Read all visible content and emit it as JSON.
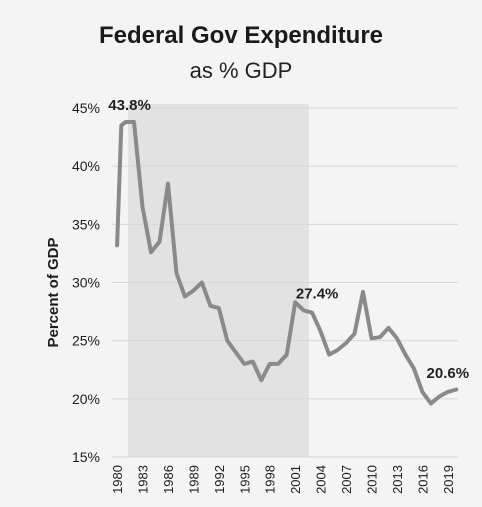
{
  "chart_data": {
    "type": "line",
    "title": "Federal Gov Expenditure",
    "subtitle": "as % GDP",
    "ylabel": "Percent of GDP",
    "xlabel": "",
    "ylim": [
      15,
      45
    ],
    "xlim": [
      1979.4,
      2020.2
    ],
    "y_ticks": [
      "15%",
      "20%",
      "25%",
      "30%",
      "35%",
      "40%",
      "45%"
    ],
    "y_tick_values": [
      15,
      20,
      25,
      30,
      35,
      40,
      45
    ],
    "x_ticks": [
      "1980",
      "1983",
      "1986",
      "1989",
      "1992",
      "1995",
      "1998",
      "2001",
      "2004",
      "2007",
      "2010",
      "2013",
      "2016",
      "2019"
    ],
    "x_tick_values": [
      1980,
      1983,
      1986,
      1989,
      1992,
      1995,
      1998,
      2001,
      2004,
      2007,
      2010,
      2013,
      2016,
      2019
    ],
    "grid": true,
    "series": [
      {
        "x": [
          1980,
          1980.5,
          1981,
          1982,
          1983,
          1984,
          1985,
          1986,
          1987,
          1988,
          1989,
          1990,
          1991,
          1992,
          1993,
          1994,
          1995,
          1996,
          1997,
          1998,
          1999,
          2000,
          2001,
          2002,
          2003,
          2004,
          2005,
          2006,
          2007,
          2008,
          2009,
          2010,
          2011,
          2012,
          2013,
          2014,
          2015,
          2016,
          2017,
          2018,
          2019,
          2020
        ],
        "values": [
          33.2,
          43.5,
          43.8,
          43.8,
          36.5,
          32.6,
          33.5,
          38.5,
          30.8,
          28.8,
          29.3,
          30.0,
          28.0,
          27.8,
          25.0,
          24.0,
          23.0,
          23.2,
          21.6,
          23.0,
          23.0,
          23.8,
          28.3,
          27.6,
          27.4,
          25.8,
          23.8,
          24.2,
          24.8,
          25.6,
          29.2,
          25.2,
          25.3,
          26.1,
          25.2,
          23.8,
          22.6,
          20.6,
          19.6,
          20.2,
          20.6,
          20.8
        ]
      }
    ],
    "annotations": [
      {
        "text": "43.8%",
        "x": 1981,
        "y": 43.8
      },
      {
        "text": "27.4%",
        "x": 2003,
        "y": 27.4
      },
      {
        "text": "20.6%",
        "x": 2019,
        "y": 20.6
      }
    ],
    "colors": {
      "line": "#8a8a8a",
      "grid": "#d6d6d6",
      "shade": "#e2e2e2",
      "background": "#f4f4f4"
    }
  }
}
